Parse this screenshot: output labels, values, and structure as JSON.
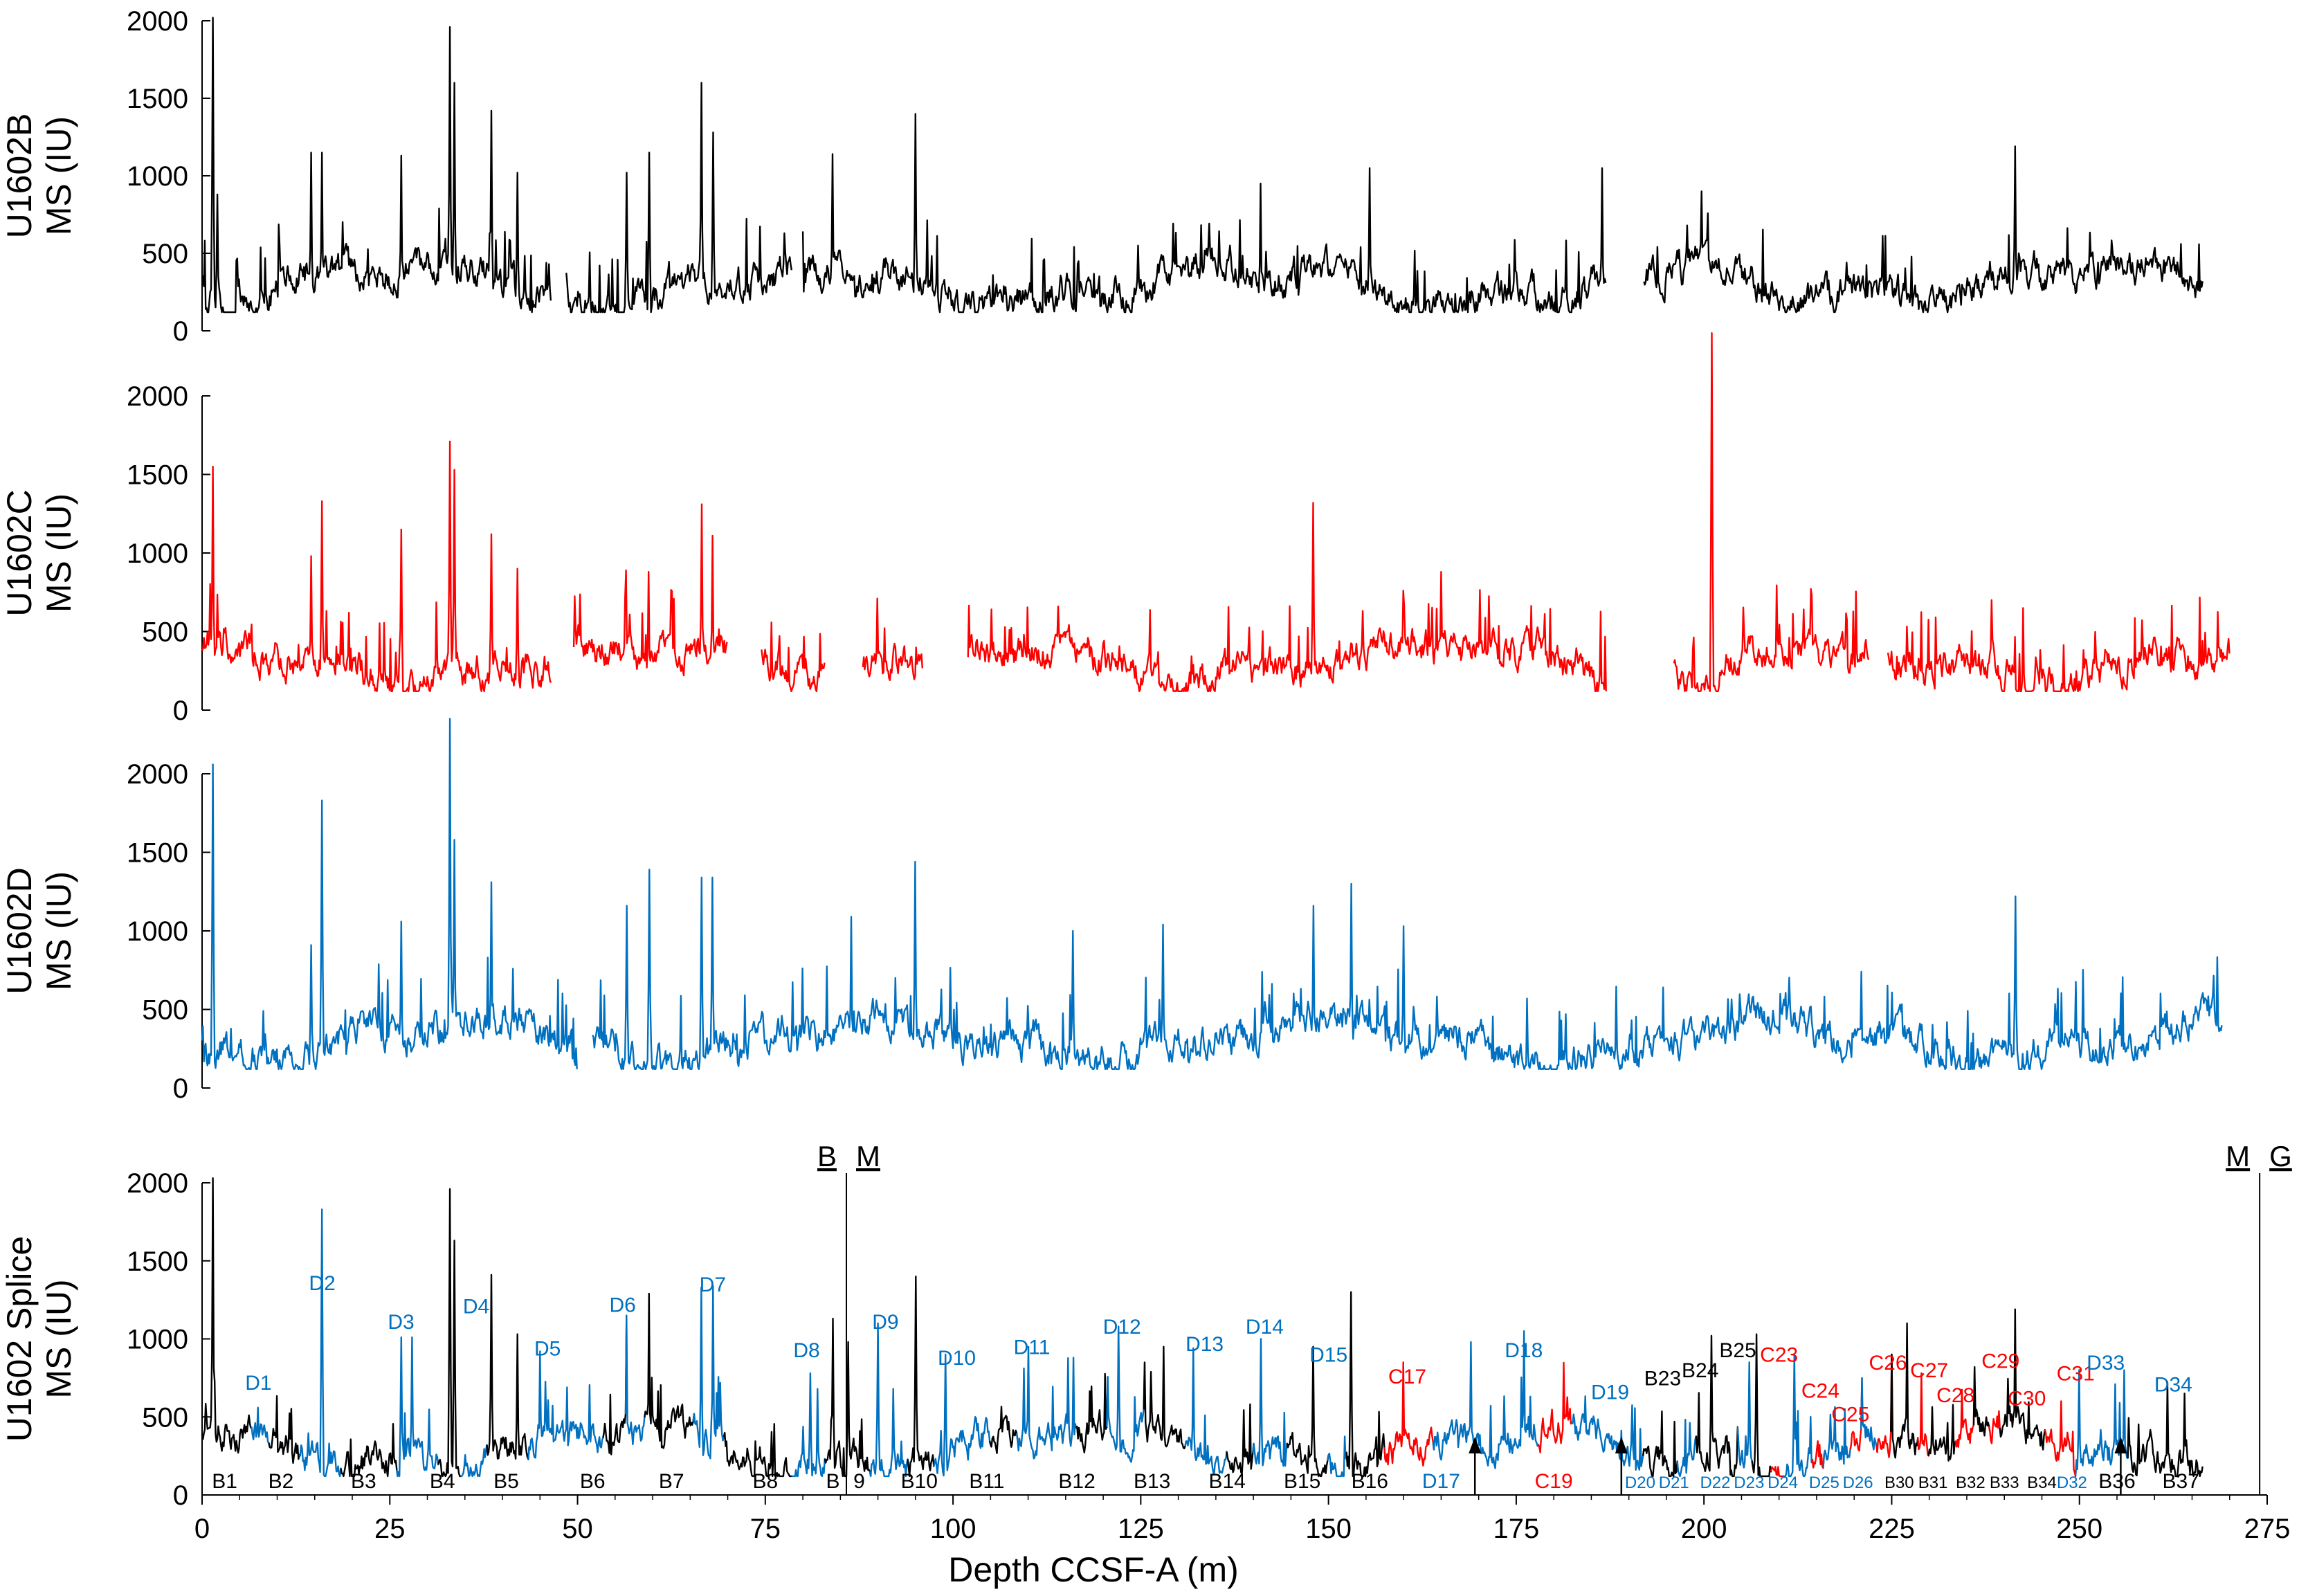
{
  "chart_data": {
    "type": "line",
    "xlabel": "Depth CCSF-A (m)",
    "xlim": [
      0,
      275
    ],
    "x_ticks": [
      "0",
      "25",
      "50",
      "75",
      "100",
      "125",
      "150",
      "175",
      "200",
      "225",
      "250",
      "275"
    ],
    "y_ticks": [
      "0",
      "500",
      "1000",
      "1500",
      "2000"
    ],
    "ylim": [
      0,
      2000
    ],
    "grid": false,
    "colors": {
      "B": "#000000",
      "C": "#ff0000",
      "D": "#0070c0"
    },
    "panels": [
      {
        "id": "u1602b",
        "ylabel_line1": "U1602B",
        "ylabel_line2": "MS (IU)",
        "color": "#000000",
        "segments": [
          [
            0,
            46.5
          ],
          [
            48.5,
            78.5
          ],
          [
            80,
            187
          ],
          [
            192,
            266.5
          ]
        ],
        "peaks": [
          [
            1.5,
            2020
          ],
          [
            2,
            880
          ],
          [
            14.5,
            1150
          ],
          [
            16,
            1150
          ],
          [
            26.5,
            1130
          ],
          [
            33,
            1960
          ],
          [
            33.6,
            1600
          ],
          [
            38.5,
            1420
          ],
          [
            42,
            1020
          ],
          [
            56.5,
            1020
          ],
          [
            59.5,
            1150
          ],
          [
            66.5,
            1600
          ],
          [
            68,
            1280
          ],
          [
            84,
            1140
          ],
          [
            95,
            1400
          ],
          [
            141,
            950
          ],
          [
            155.5,
            1050
          ],
          [
            186.5,
            1050
          ],
          [
            241.5,
            1190
          ]
        ]
      },
      {
        "id": "u1602c",
        "ylabel_line1": "U1602C",
        "ylabel_line2": "MS (IU)",
        "color": "#ff0000",
        "segments": [
          [
            0,
            46.5
          ],
          [
            49.5,
            70
          ],
          [
            74.5,
            83
          ],
          [
            88,
            96
          ],
          [
            102,
            187
          ],
          [
            196,
            222
          ],
          [
            224.5,
            270
          ]
        ],
        "peaks": [
          [
            1.5,
            1550
          ],
          [
            14.5,
            980
          ],
          [
            16,
            1330
          ],
          [
            26.5,
            1150
          ],
          [
            33,
            1710
          ],
          [
            33.6,
            1530
          ],
          [
            38.5,
            1120
          ],
          [
            42,
            900
          ],
          [
            56.5,
            890
          ],
          [
            59.5,
            880
          ],
          [
            66.5,
            1310
          ],
          [
            68,
            1110
          ],
          [
            148,
            1320
          ],
          [
            201,
            2400
          ]
        ]
      },
      {
        "id": "u1602d",
        "ylabel_line1": "U1602D",
        "ylabel_line2": "MS (IU)",
        "color": "#0070c0",
        "segments": [
          [
            0,
            50
          ],
          [
            52,
            269
          ]
        ],
        "peaks": [
          [
            1.5,
            2060
          ],
          [
            14.5,
            910
          ],
          [
            16,
            1830
          ],
          [
            26.5,
            1060
          ],
          [
            33,
            2350
          ],
          [
            33.6,
            1580
          ],
          [
            38.5,
            1310
          ],
          [
            56.5,
            1160
          ],
          [
            59.5,
            1390
          ],
          [
            66.5,
            1340
          ],
          [
            68,
            1340
          ],
          [
            86.5,
            1090
          ],
          [
            95,
            1440
          ],
          [
            116,
            1000
          ],
          [
            128,
            1040
          ],
          [
            148,
            1160
          ],
          [
            153,
            1300
          ],
          [
            160,
            1030
          ],
          [
            221,
            740
          ],
          [
            241.5,
            1220
          ]
        ]
      },
      {
        "id": "u1602-splice",
        "ylabel_line1": "U1602 Splice",
        "ylabel_line2": "MS (IU)",
        "color": "#000000",
        "splice_segments": [
          [
            "B1",
            0,
            6.5,
            "B"
          ],
          [
            "D1",
            6.5,
            9,
            "D"
          ],
          [
            "B2",
            9,
            13,
            "B"
          ],
          [
            "D2",
            13,
            18.5,
            "D"
          ],
          [
            "B3",
            18.5,
            26,
            "B"
          ],
          [
            "D3",
            26,
            31.5,
            "D"
          ],
          [
            "B4",
            31.5,
            34.5,
            "B"
          ],
          [
            "D4",
            34.5,
            38,
            "D"
          ],
          [
            "B5",
            38,
            43.5,
            "B"
          ],
          [
            "D5",
            43.5,
            53.5,
            "D"
          ],
          [
            "B6",
            53.5,
            56.5,
            "B"
          ],
          [
            "D6",
            56.5,
            59,
            "D"
          ],
          [
            "B7",
            59,
            65.5,
            "B"
          ],
          [
            "D7",
            65.5,
            69.5,
            "D"
          ],
          [
            "B8",
            69.5,
            78.5,
            "B"
          ],
          [
            "D8",
            78.5,
            83,
            "D"
          ],
          [
            "B9",
            83,
            89,
            "B"
          ],
          [
            "D9",
            89,
            94,
            "D"
          ],
          [
            "B10",
            94,
            97.5,
            "B"
          ],
          [
            "D10",
            97.5,
            105,
            "D"
          ],
          [
            "B11",
            105,
            108.5,
            "B"
          ],
          [
            "D11",
            108.5,
            116.5,
            "D"
          ],
          [
            "B12",
            116.5,
            120.5,
            "B"
          ],
          [
            "D12",
            120.5,
            125.5,
            "D"
          ],
          [
            "B13",
            125.5,
            131,
            "B"
          ],
          [
            "D13",
            131,
            136.5,
            "D"
          ],
          [
            "B14",
            136.5,
            140,
            "B"
          ],
          [
            "D14",
            140,
            144.5,
            "D"
          ],
          [
            "B15",
            144.5,
            150,
            "B"
          ],
          [
            "D15",
            150,
            152.5,
            "D"
          ],
          [
            "B16",
            152.5,
            157.5,
            "B"
          ],
          [
            "C17",
            157.5,
            164,
            "C"
          ],
          [
            "D17",
            164,
            178,
            "D"
          ],
          [
            "C19",
            178,
            182.5,
            "C"
          ],
          [
            "D18",
            182.5,
            188.5,
            "D"
          ],
          [
            "D19",
            188.5,
            192,
            "D"
          ],
          [
            "B23",
            192,
            196.5,
            "B"
          ],
          [
            "D20",
            196.5,
            199,
            "D"
          ],
          [
            "B24",
            199,
            204.5,
            "B"
          ],
          [
            "D21",
            204.5,
            206.5,
            "D"
          ],
          [
            "B25",
            206.5,
            209,
            "B"
          ],
          [
            "C23",
            209,
            210.5,
            "C"
          ],
          [
            "D22",
            210.5,
            214.5,
            "D"
          ],
          [
            "C24",
            214.5,
            216,
            "C"
          ],
          [
            "D23",
            216,
            219.5,
            "D"
          ],
          [
            "C25",
            219.5,
            221,
            "C"
          ],
          [
            "D24",
            221,
            223,
            "D"
          ],
          [
            "C26",
            223,
            225,
            "C"
          ],
          [
            "B30",
            225,
            228.5,
            "B"
          ],
          [
            "C27",
            228.5,
            230,
            "C"
          ],
          [
            "B31",
            230,
            233.5,
            "B"
          ],
          [
            "C28",
            233.5,
            236,
            "C"
          ],
          [
            "B32",
            236,
            238,
            "B"
          ],
          [
            "C29",
            238,
            239.5,
            "C"
          ],
          [
            "B33",
            239.5,
            245.5,
            "B"
          ],
          [
            "C30",
            245.5,
            247,
            "C"
          ],
          [
            "C31",
            247,
            249.5,
            "C"
          ],
          [
            "D32",
            249.5,
            256.5,
            "D"
          ],
          [
            "B36",
            256.5,
            261.5,
            "B"
          ],
          [
            "B37",
            261.5,
            266.5,
            "B"
          ]
        ],
        "peaks": [
          [
            1.5,
            2030
          ],
          [
            7.5,
            560
          ],
          [
            16,
            1830
          ],
          [
            26.5,
            1010
          ],
          [
            28,
            1010
          ],
          [
            33,
            1960
          ],
          [
            33.6,
            1630
          ],
          [
            38.5,
            1410
          ],
          [
            42,
            1030
          ],
          [
            45,
            920
          ],
          [
            56.5,
            1150
          ],
          [
            59.5,
            1290
          ],
          [
            66.5,
            1330
          ],
          [
            68,
            1340
          ],
          [
            81,
            780
          ],
          [
            84,
            1130
          ],
          [
            86,
            980
          ],
          [
            90,
            1100
          ],
          [
            95,
            1400
          ],
          [
            99,
            900
          ],
          [
            110,
            950
          ],
          [
            116,
            880
          ],
          [
            122,
            1080
          ],
          [
            128,
            950
          ],
          [
            132,
            940
          ],
          [
            141,
            1000
          ],
          [
            148,
            950
          ],
          [
            153,
            1300
          ],
          [
            160,
            850
          ],
          [
            169,
            980
          ],
          [
            176,
            1050
          ],
          [
            201,
            1020
          ],
          [
            206,
            850
          ],
          [
            207,
            1030
          ],
          [
            212,
            900
          ],
          [
            221,
            750
          ],
          [
            225,
            900
          ],
          [
            227,
            1100
          ],
          [
            229,
            780
          ],
          [
            236,
            820
          ],
          [
            241.5,
            1190
          ],
          [
            250,
            800
          ],
          [
            256,
            800
          ],
          [
            264,
            650
          ]
        ],
        "top_labels_above": [
          [
            "D1",
            7.5,
            620,
            "D"
          ],
          [
            "D2",
            16,
            1260,
            "D"
          ],
          [
            "D3",
            26.5,
            1010,
            "D"
          ],
          [
            "D4",
            36.5,
            1110,
            "D"
          ],
          [
            "D5",
            46,
            840,
            "D"
          ],
          [
            "D6",
            56,
            1120,
            "D"
          ],
          [
            "D7",
            68,
            1250,
            "D"
          ],
          [
            "D8",
            80.5,
            830,
            "D"
          ],
          [
            "D9",
            91,
            1010,
            "D"
          ],
          [
            "D10",
            100.5,
            780,
            "D"
          ],
          [
            "D11",
            110.5,
            850,
            "D"
          ],
          [
            "D12",
            122.5,
            980,
            "D"
          ],
          [
            "D13",
            133.5,
            870,
            "D"
          ],
          [
            "D14",
            141.5,
            980,
            "D"
          ],
          [
            "D15",
            150,
            800,
            "D"
          ],
          [
            "C17",
            160.5,
            660,
            "C"
          ],
          [
            "D18",
            176,
            830,
            "D"
          ],
          [
            "D19",
            187.5,
            560,
            "D"
          ],
          [
            "B23",
            194.5,
            650,
            "B"
          ],
          [
            "B24",
            199.5,
            700,
            "B"
          ],
          [
            "B25",
            204.5,
            830,
            "B"
          ],
          [
            "C23",
            210,
            800,
            "C"
          ],
          [
            "C24",
            215.5,
            570,
            "C"
          ],
          [
            "C25",
            219.5,
            420,
            "C"
          ],
          [
            "C26",
            224.5,
            750,
            "C"
          ],
          [
            "C27",
            230,
            700,
            "C"
          ],
          [
            "C28",
            233.5,
            540,
            "C"
          ],
          [
            "C29",
            239.5,
            760,
            "C"
          ],
          [
            "C30",
            243,
            520,
            "C"
          ],
          [
            "C31",
            249.5,
            680,
            "C"
          ],
          [
            "D33",
            253.5,
            750,
            "D"
          ],
          [
            "D34",
            262.5,
            610,
            "D"
          ]
        ],
        "bottom_labels": [
          [
            "B1",
            3,
            "B"
          ],
          [
            "B2",
            10.5,
            "B"
          ],
          [
            "B3",
            21.5,
            "B"
          ],
          [
            "B4",
            32,
            "B"
          ],
          [
            "B5",
            40.5,
            "B"
          ],
          [
            "B6",
            52,
            "B"
          ],
          [
            "B7",
            62.5,
            "B"
          ],
          [
            "B8",
            75,
            "B"
          ],
          [
            "B",
            84,
            "B"
          ],
          [
            "9",
            87.5,
            "B"
          ],
          [
            "B10",
            95.5,
            "B"
          ],
          [
            "B11",
            104.5,
            "B"
          ],
          [
            "B12",
            116.5,
            "B"
          ],
          [
            "B13",
            126.5,
            "B"
          ],
          [
            "B14",
            136.5,
            "B"
          ],
          [
            "B15",
            146.5,
            "B"
          ],
          [
            "B16",
            155.5,
            "B"
          ],
          [
            "D17",
            165,
            "D"
          ],
          [
            "C19",
            180,
            "C"
          ],
          [
            "D20",
            191.5,
            "D"
          ],
          [
            "D21",
            196,
            "D"
          ],
          [
            "D22",
            201.5,
            "D"
          ],
          [
            "D23",
            206,
            "D"
          ],
          [
            "D24",
            210.5,
            "D"
          ],
          [
            "D25",
            216,
            "D"
          ],
          [
            "D26",
            220.5,
            "D"
          ],
          [
            "B30",
            226,
            "B"
          ],
          [
            "B31",
            230.5,
            "B"
          ],
          [
            "B32",
            235.5,
            "B"
          ],
          [
            "B33",
            240,
            "B"
          ],
          [
            "B34",
            245,
            "B"
          ],
          [
            "D32",
            249,
            "D"
          ],
          [
            "B36",
            255,
            "B"
          ],
          [
            "B37",
            263.5,
            "B"
          ]
        ],
        "arrows": [
          169.5,
          189,
          255.5
        ],
        "unit_boundaries": [
          {
            "depth": 85.8,
            "left_label": "B",
            "right_label": "M"
          },
          {
            "depth": 274,
            "left_label": "M",
            "right_label": "G"
          }
        ]
      }
    ]
  }
}
